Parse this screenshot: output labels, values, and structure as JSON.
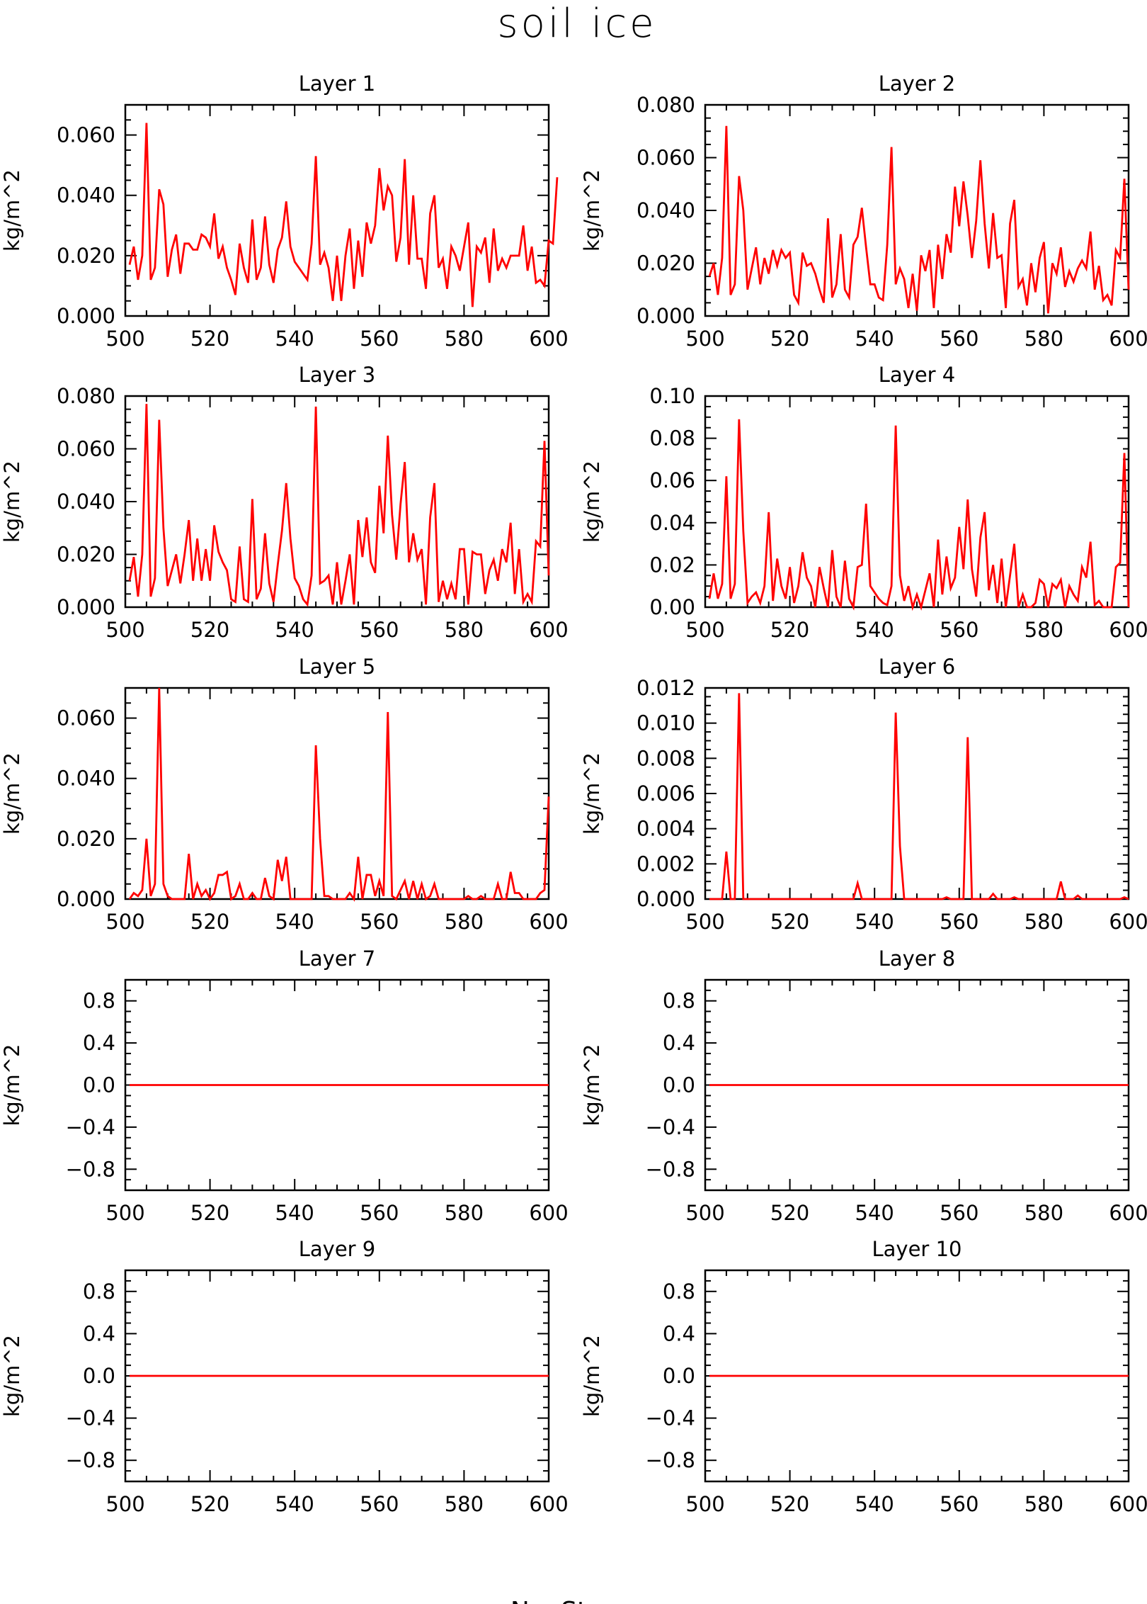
{
  "figure": {
    "title": "soil ice",
    "xlabel": "No. St",
    "line_color": "#ff0000"
  },
  "chart_data": [
    {
      "type": "line",
      "title": "Layer 1",
      "ylabel": "kg/m^2",
      "xlim": [
        500,
        600
      ],
      "ylim": [
        0,
        0.07
      ],
      "xticks": [
        "500",
        "520",
        "540",
        "560",
        "580",
        "600"
      ],
      "yticks": [
        [
          "0.000",
          0
        ],
        [
          "0.020",
          0.02
        ],
        [
          "0.040",
          0.04
        ],
        [
          "0.060",
          0.06
        ]
      ],
      "series": [
        {
          "x_start": 501,
          "values": [
            0.017,
            0.023,
            0.012,
            0.02,
            0.064,
            0.012,
            0.016,
            0.042,
            0.037,
            0.013,
            0.022,
            0.027,
            0.014,
            0.024,
            0.024,
            0.022,
            0.022,
            0.027,
            0.026,
            0.023,
            0.034,
            0.019,
            0.023,
            0.016,
            0.012,
            0.007,
            0.024,
            0.016,
            0.011,
            0.032,
            0.012,
            0.016,
            0.033,
            0.017,
            0.011,
            0.022,
            0.026,
            0.038,
            0.023,
            0.018,
            0.016,
            0.014,
            0.012,
            0.024,
            0.053,
            0.017,
            0.021,
            0.016,
            0.005,
            0.02,
            0.005,
            0.02,
            0.029,
            0.009,
            0.025,
            0.013,
            0.031,
            0.024,
            0.03,
            0.049,
            0.035,
            0.043,
            0.04,
            0.018,
            0.026,
            0.052,
            0.017,
            0.04,
            0.019,
            0.019,
            0.009,
            0.034,
            0.04,
            0.016,
            0.019,
            0.009,
            0.023,
            0.02,
            0.015,
            0.023,
            0.031,
            0.003,
            0.023,
            0.021,
            0.026,
            0.011,
            0.029,
            0.015,
            0.019,
            0.016,
            0.02,
            0.02,
            0.02,
            0.03,
            0.015,
            0.023,
            0.011,
            0.012,
            0.01,
            0.025,
            0.024,
            0.046
          ]
        }
      ]
    },
    {
      "type": "line",
      "title": "Layer 2",
      "ylabel": "kg/m^2",
      "xlim": [
        500,
        600
      ],
      "ylim": [
        0,
        0.08
      ],
      "xticks": [
        "500",
        "520",
        "540",
        "560",
        "580",
        "600"
      ],
      "yticks": [
        [
          "0.000",
          0
        ],
        [
          "0.020",
          0.02
        ],
        [
          "0.040",
          0.04
        ],
        [
          "0.060",
          0.06
        ],
        [
          "0.080",
          0.08
        ]
      ],
      "series": [
        {
          "x_start": 501,
          "values": [
            0.015,
            0.02,
            0.008,
            0.022,
            0.072,
            0.008,
            0.012,
            0.053,
            0.04,
            0.01,
            0.018,
            0.026,
            0.012,
            0.022,
            0.016,
            0.025,
            0.019,
            0.025,
            0.022,
            0.024,
            0.008,
            0.005,
            0.024,
            0.019,
            0.02,
            0.016,
            0.01,
            0.005,
            0.037,
            0.007,
            0.012,
            0.031,
            0.01,
            0.007,
            0.027,
            0.03,
            0.041,
            0.026,
            0.012,
            0.012,
            0.007,
            0.006,
            0.027,
            0.064,
            0.012,
            0.018,
            0.014,
            0.003,
            0.016,
            0.002,
            0.023,
            0.017,
            0.025,
            0.003,
            0.027,
            0.014,
            0.031,
            0.024,
            0.049,
            0.034,
            0.051,
            0.038,
            0.022,
            0.036,
            0.059,
            0.035,
            0.018,
            0.039,
            0.022,
            0.023,
            0.003,
            0.035,
            0.044,
            0.011,
            0.014,
            0.004,
            0.02,
            0.009,
            0.022,
            0.028,
            0.001,
            0.02,
            0.016,
            0.026,
            0.011,
            0.017,
            0.013,
            0.018,
            0.021,
            0.018,
            0.032,
            0.01,
            0.019,
            0.006,
            0.008,
            0.004,
            0.025,
            0.022,
            0.052,
            0.01
          ]
        }
      ]
    },
    {
      "type": "line",
      "title": "Layer 3",
      "ylabel": "kg/m^2",
      "xlim": [
        500,
        600
      ],
      "ylim": [
        0,
        0.08
      ],
      "xticks": [
        "500",
        "520",
        "540",
        "560",
        "580",
        "600"
      ],
      "yticks": [
        [
          "0.000",
          0
        ],
        [
          "0.020",
          0.02
        ],
        [
          "0.040",
          0.04
        ],
        [
          "0.060",
          0.06
        ],
        [
          "0.080",
          0.08
        ]
      ],
      "series": [
        {
          "x_start": 501,
          "values": [
            0.01,
            0.019,
            0.004,
            0.02,
            0.077,
            0.004,
            0.011,
            0.071,
            0.03,
            0.008,
            0.014,
            0.02,
            0.009,
            0.02,
            0.033,
            0.01,
            0.026,
            0.01,
            0.022,
            0.01,
            0.031,
            0.021,
            0.017,
            0.014,
            0.003,
            0.002,
            0.023,
            0.003,
            0.002,
            0.041,
            0.003,
            0.007,
            0.028,
            0.009,
            0.002,
            0.016,
            0.029,
            0.047,
            0.026,
            0.011,
            0.008,
            0.003,
            0.001,
            0.012,
            0.076,
            0.009,
            0.01,
            0.012,
            0.001,
            0.017,
            0.001,
            0.01,
            0.02,
            0.001,
            0.033,
            0.019,
            0.034,
            0.017,
            0.013,
            0.046,
            0.028,
            0.065,
            0.035,
            0.018,
            0.039,
            0.055,
            0.017,
            0.028,
            0.018,
            0.022,
            0.001,
            0.034,
            0.047,
            0.002,
            0.01,
            0.003,
            0.009,
            0.003,
            0.022,
            0.022,
            0.001,
            0.021,
            0.02,
            0.02,
            0.005,
            0.014,
            0.018,
            0.01,
            0.022,
            0.017,
            0.032,
            0.005,
            0.022,
            0.002,
            0.005,
            0.002,
            0.025,
            0.023,
            0.063,
            0.012
          ]
        }
      ]
    },
    {
      "type": "line",
      "title": "Layer 4",
      "ylabel": "kg/m^2",
      "xlim": [
        500,
        600
      ],
      "ylim": [
        0,
        0.1
      ],
      "xticks": [
        "500",
        "520",
        "540",
        "560",
        "580",
        "600"
      ],
      "yticks": [
        [
          "0.00",
          0
        ],
        [
          "0.02",
          0.02
        ],
        [
          "0.04",
          0.04
        ],
        [
          "0.06",
          0.06
        ],
        [
          "0.08",
          0.08
        ],
        [
          "0.10",
          0.1
        ]
      ],
      "series": [
        {
          "x_start": 501,
          "values": [
            0.004,
            0.016,
            0.004,
            0.011,
            0.062,
            0.004,
            0.011,
            0.089,
            0.036,
            0.002,
            0.005,
            0.007,
            0.002,
            0.01,
            0.045,
            0.003,
            0.023,
            0.01,
            0.004,
            0.019,
            0.002,
            0.01,
            0.026,
            0.014,
            0.01,
            0,
            0.019,
            0.009,
            0,
            0.027,
            0.005,
            0,
            0.022,
            0.004,
            0,
            0.019,
            0.02,
            0.049,
            0.01,
            0.007,
            0.004,
            0.002,
            0.001,
            0.01,
            0.086,
            0.015,
            0.003,
            0.01,
            0,
            0.006,
            0,
            0.008,
            0.016,
            0,
            0.032,
            0.006,
            0.024,
            0.009,
            0.014,
            0.038,
            0.018,
            0.051,
            0.018,
            0.005,
            0.033,
            0.045,
            0.008,
            0.02,
            0.002,
            0.023,
            0,
            0.015,
            0.03,
            0,
            0.006,
            0,
            0,
            0.002,
            0.013,
            0.011,
            0,
            0.011,
            0.009,
            0.013,
            0,
            0.01,
            0.006,
            0.003,
            0.019,
            0.014,
            0.031,
            0.001,
            0.003,
            0,
            0,
            0,
            0.019,
            0.021,
            0.073,
            0
          ]
        }
      ]
    },
    {
      "type": "line",
      "title": "Layer 5",
      "ylabel": "kg/m^2",
      "xlim": [
        500,
        600
      ],
      "ylim": [
        0,
        0.07
      ],
      "xticks": [
        "500",
        "520",
        "540",
        "560",
        "580",
        "600"
      ],
      "yticks": [
        [
          "0.000",
          0
        ],
        [
          "0.020",
          0.02
        ],
        [
          "0.040",
          0.04
        ],
        [
          "0.060",
          0.06
        ]
      ],
      "series": [
        {
          "x_start": 501,
          "values": [
            0,
            0.002,
            0.001,
            0.003,
            0.02,
            0.001,
            0.005,
            0.07,
            0.005,
            0.001,
            0,
            0,
            0,
            0,
            0.015,
            0,
            0.005,
            0.001,
            0.003,
            0,
            0.002,
            0.008,
            0.008,
            0.009,
            0,
            0.001,
            0.005,
            0,
            0,
            0.002,
            0,
            0,
            0.007,
            0.001,
            0,
            0.013,
            0.006,
            0.014,
            0,
            0,
            0,
            0,
            0,
            0,
            0.051,
            0.02,
            0.001,
            0.001,
            0,
            0,
            0,
            0,
            0.002,
            0,
            0.014,
            0,
            0.008,
            0.008,
            0.001,
            0.006,
            0.001,
            0.062,
            0.001,
            0,
            0.003,
            0.006,
            0,
            0.006,
            0,
            0.005,
            0,
            0.001,
            0.005,
            0,
            0,
            0,
            0,
            0,
            0,
            0,
            0.001,
            0,
            0,
            0.001,
            0,
            0,
            0,
            0.005,
            0,
            0,
            0.009,
            0.002,
            0.002,
            0,
            0,
            0,
            0,
            0.002,
            0.003,
            0.034
          ]
        }
      ]
    },
    {
      "type": "line",
      "title": "Layer 6",
      "ylabel": "kg/m^2",
      "xlim": [
        500,
        600
      ],
      "ylim": [
        0,
        0.012
      ],
      "xticks": [
        "500",
        "520",
        "540",
        "560",
        "580",
        "600"
      ],
      "yticks": [
        [
          "0.000",
          0
        ],
        [
          "0.002",
          0.002
        ],
        [
          "0.004",
          0.004
        ],
        [
          "0.006",
          0.006
        ],
        [
          "0.008",
          0.008
        ],
        [
          "0.010",
          0.01
        ],
        [
          "0.012",
          0.012
        ]
      ],
      "series": [
        {
          "x_start": 501,
          "values": [
            0,
            0,
            0,
            0,
            0.0027,
            0,
            0,
            0.0117,
            0,
            0,
            0,
            0,
            0,
            0,
            0,
            0,
            0,
            0,
            0,
            0,
            0,
            0,
            0,
            0,
            0,
            0,
            0,
            0,
            0,
            0,
            0,
            0,
            0,
            0,
            0,
            0.0009,
            0,
            0,
            0,
            0,
            0,
            0,
            0,
            0,
            0.0106,
            0.003,
            0,
            0,
            0,
            0,
            0,
            0,
            0,
            0,
            0,
            0,
            0.0001,
            0,
            0,
            0,
            0,
            0.0092,
            0,
            0,
            0,
            0,
            0,
            0.0003,
            0,
            0,
            0,
            0,
            0.0001,
            0,
            0,
            0,
            0,
            0,
            0,
            0,
            0,
            0,
            0,
            0.001,
            0,
            0,
            0,
            0.0002,
            0,
            0,
            0,
            0,
            0,
            0,
            0,
            0,
            0,
            0,
            0.0001,
            0
          ]
        }
      ]
    },
    {
      "type": "line",
      "title": "Layer 7",
      "ylabel": "kg/m^2",
      "xlim": [
        500,
        600
      ],
      "ylim": [
        -1,
        1
      ],
      "xticks": [
        "500",
        "520",
        "540",
        "560",
        "580",
        "600"
      ],
      "yticks": [
        [
          "−0.8",
          -0.8
        ],
        [
          "−0.4",
          -0.4
        ],
        [
          "0.0",
          0
        ],
        [
          "0.4",
          0.4
        ],
        [
          "0.8",
          0.8
        ]
      ],
      "series": [
        {
          "x_start": 501,
          "values": [
            0,
            0
          ],
          "x_end": 600
        }
      ]
    },
    {
      "type": "line",
      "title": "Layer 8",
      "ylabel": "kg/m^2",
      "xlim": [
        500,
        600
      ],
      "ylim": [
        -1,
        1
      ],
      "xticks": [
        "500",
        "520",
        "540",
        "560",
        "580",
        "600"
      ],
      "yticks": [
        [
          "−0.8",
          -0.8
        ],
        [
          "−0.4",
          -0.4
        ],
        [
          "0.0",
          0
        ],
        [
          "0.4",
          0.4
        ],
        [
          "0.8",
          0.8
        ]
      ],
      "series": [
        {
          "x_start": 501,
          "values": [
            0,
            0
          ],
          "x_end": 600
        }
      ]
    },
    {
      "type": "line",
      "title": "Layer 9",
      "ylabel": "kg/m^2",
      "xlim": [
        500,
        600
      ],
      "ylim": [
        -1,
        1
      ],
      "xticks": [
        "500",
        "520",
        "540",
        "560",
        "580",
        "600"
      ],
      "yticks": [
        [
          "−0.8",
          -0.8
        ],
        [
          "−0.4",
          -0.4
        ],
        [
          "0.0",
          0
        ],
        [
          "0.4",
          0.4
        ],
        [
          "0.8",
          0.8
        ]
      ],
      "series": [
        {
          "x_start": 501,
          "values": [
            0,
            0
          ],
          "x_end": 600
        }
      ]
    },
    {
      "type": "line",
      "title": "Layer 10",
      "ylabel": "kg/m^2",
      "xlim": [
        500,
        600
      ],
      "ylim": [
        -1,
        1
      ],
      "xticks": [
        "500",
        "520",
        "540",
        "560",
        "580",
        "600"
      ],
      "yticks": [
        [
          "−0.8",
          -0.8
        ],
        [
          "−0.4",
          -0.4
        ],
        [
          "0.0",
          0
        ],
        [
          "0.4",
          0.4
        ],
        [
          "0.8",
          0.8
        ]
      ],
      "series": [
        {
          "x_start": 501,
          "values": [
            0,
            0
          ],
          "x_end": 600
        }
      ]
    }
  ]
}
